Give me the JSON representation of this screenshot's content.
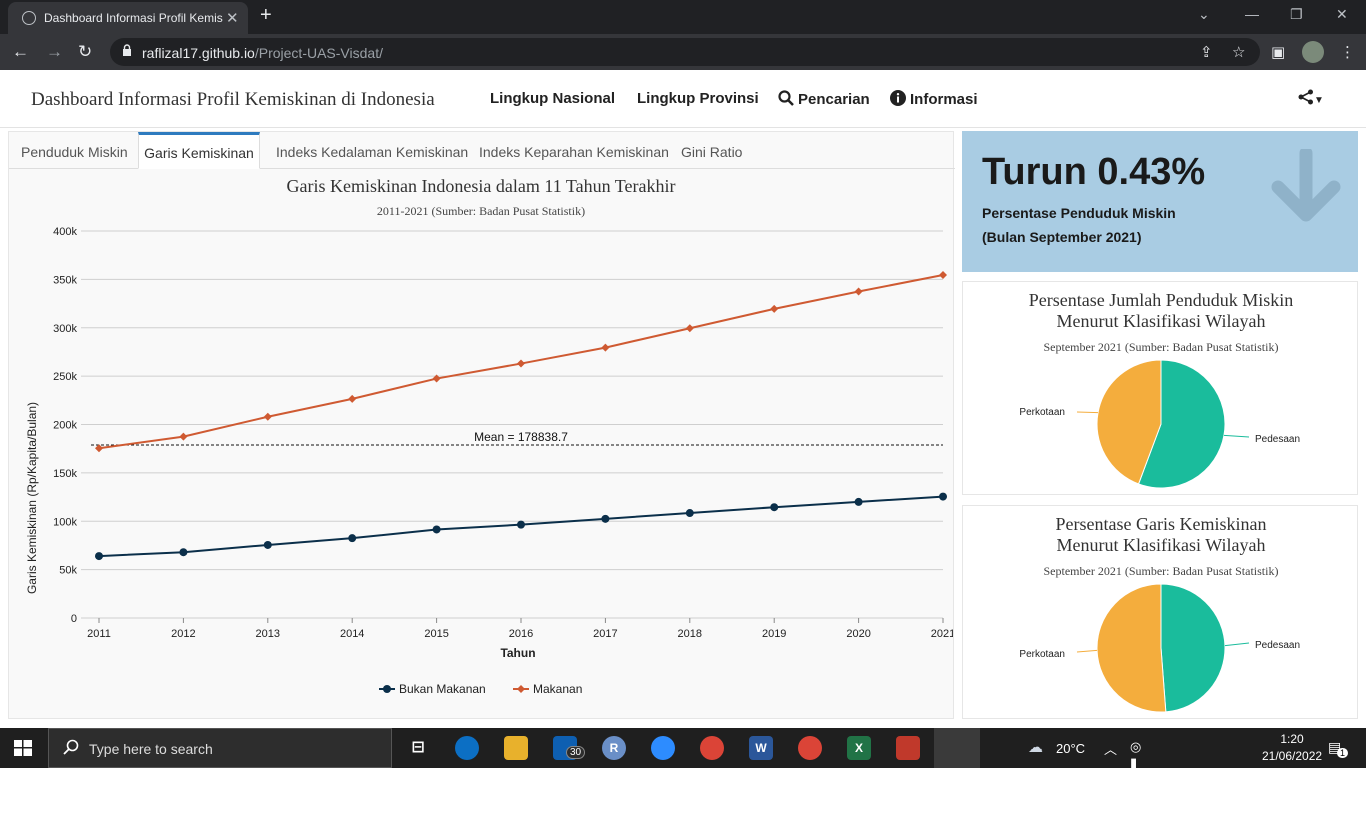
{
  "browser": {
    "tab_title": "Dashboard Informasi Profil Kemis",
    "url_host": "raflizal17.github.io",
    "url_path": "/Project-UAS-Visdat/"
  },
  "navbar": {
    "brand": "Dashboard Informasi Profil Kemiskinan di Indonesia",
    "items": [
      {
        "label": "Lingkup Nasional"
      },
      {
        "label": "Lingkup Provinsi"
      },
      {
        "label": "Pencarian",
        "icon": "search-icon"
      },
      {
        "label": "Informasi",
        "icon": "info-icon"
      }
    ],
    "share_icon": "share-icon"
  },
  "tabs": [
    {
      "label": "Penduduk Miskin"
    },
    {
      "label": "Garis Kemiskinan",
      "active": true
    },
    {
      "label": "Indeks Kedalaman Kemiskinan"
    },
    {
      "label": "Indeks Keparahan Kemiskinan"
    },
    {
      "label": "Gini Ratio"
    }
  ],
  "kpi": {
    "headline": "Turun 0.43%",
    "line1": "Persentase Penduduk Miskin",
    "line2": "(Bulan September 2021)",
    "icon": "arrow-down-icon"
  },
  "pie_cards": [
    {
      "title1": "Persentase Jumlah Penduduk Miskin",
      "title2": "Menurut Klasifikasi Wilayah",
      "subtitle": "September 2021 (Sumber: Badan Pusat Statistik)"
    },
    {
      "title1": "Persentase Garis Kemiskinan",
      "title2": "Menurut Klasifikasi Wilayah",
      "subtitle": "September 2021 (Sumber: Badan Pusat Statistik)"
    }
  ],
  "chart_data": [
    {
      "type": "line",
      "title": "Garis Kemiskinan Indonesia dalam 11 Tahun Terakhir",
      "subtitle": "2011-2021 (Sumber: Badan Pusat Statistik)",
      "xlabel": "Tahun",
      "ylabel": "Garis Kemiskinan (Rp/Kapita/Bulan)",
      "x": [
        "2011",
        "2012",
        "2013",
        "2014",
        "2015",
        "2016",
        "2017",
        "2018",
        "2019",
        "2020",
        "2021"
      ],
      "ylim": [
        0,
        400000
      ],
      "yticks": [
        0,
        50000,
        100000,
        150000,
        200000,
        250000,
        300000,
        350000,
        400000
      ],
      "ytick_labels": [
        "0",
        "50k",
        "100k",
        "150k",
        "200k",
        "250k",
        "300k",
        "350k",
        "400k"
      ],
      "grid": true,
      "legend": "bottom",
      "series": [
        {
          "name": "Bukan Makanan",
          "color": "#0b2f4a",
          "values": [
            64000,
            68000,
            75500,
            82500,
            91500,
            96500,
            102500,
            108500,
            114500,
            120000,
            125500
          ]
        },
        {
          "name": "Makanan",
          "color": "#cf5a32",
          "values": [
            175500,
            187500,
            208000,
            226500,
            247500,
            263000,
            279500,
            299500,
            319500,
            337500,
            354500
          ]
        }
      ],
      "reference_line": {
        "label": "Mean = 178838.7",
        "value": 178838.7
      }
    },
    {
      "type": "pie",
      "labels": [
        "Pedesaan",
        "Perkotaan"
      ],
      "values": [
        55.7,
        44.3
      ],
      "colors": [
        "#1abc9c",
        "#f4ad3d"
      ]
    },
    {
      "type": "pie",
      "labels": [
        "Pedesaan",
        "Perkotaan"
      ],
      "values": [
        48.8,
        51.2
      ],
      "colors": [
        "#1abc9c",
        "#f4ad3d"
      ]
    }
  ],
  "taskbar": {
    "search_placeholder": "Type here to search",
    "mail_badge": "30",
    "weather": "20°C",
    "time": "1:20",
    "date": "21/06/2022",
    "notification_count": "1"
  }
}
